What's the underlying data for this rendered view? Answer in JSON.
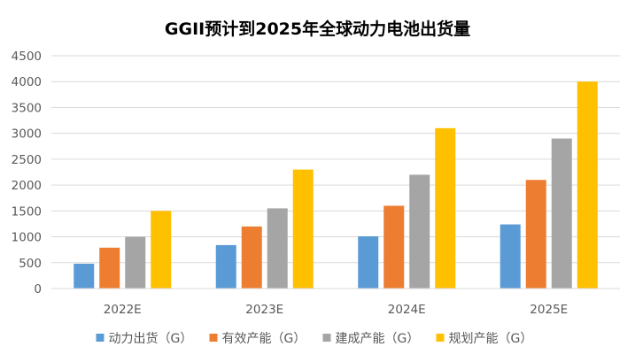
{
  "chart_data": {
    "type": "bar",
    "title": "GGII预计到2025年全球动力电池出货量",
    "xlabel": "",
    "ylabel": "",
    "categories": [
      "2022E",
      "2023E",
      "2024E",
      "2025E"
    ],
    "series": [
      {
        "name": "动力出货（G）",
        "color": "#5B9BD5",
        "values": [
          480,
          840,
          1010,
          1240
        ]
      },
      {
        "name": "有效产能（G）",
        "color": "#ED7D31",
        "values": [
          790,
          1200,
          1600,
          2100
        ]
      },
      {
        "name": "建成产能（G）",
        "color": "#A5A5A5",
        "values": [
          1000,
          1550,
          2200,
          2900
        ]
      },
      {
        "name": "规划产能（G）",
        "color": "#FFC000",
        "values": [
          1500,
          2300,
          3100,
          4000
        ]
      }
    ],
    "ylim": [
      0,
      4500
    ],
    "yticks": [
      0,
      500,
      1000,
      1500,
      2000,
      2500,
      3000,
      3500,
      4000,
      4500
    ],
    "grid": true,
    "legend_position": "bottom"
  }
}
